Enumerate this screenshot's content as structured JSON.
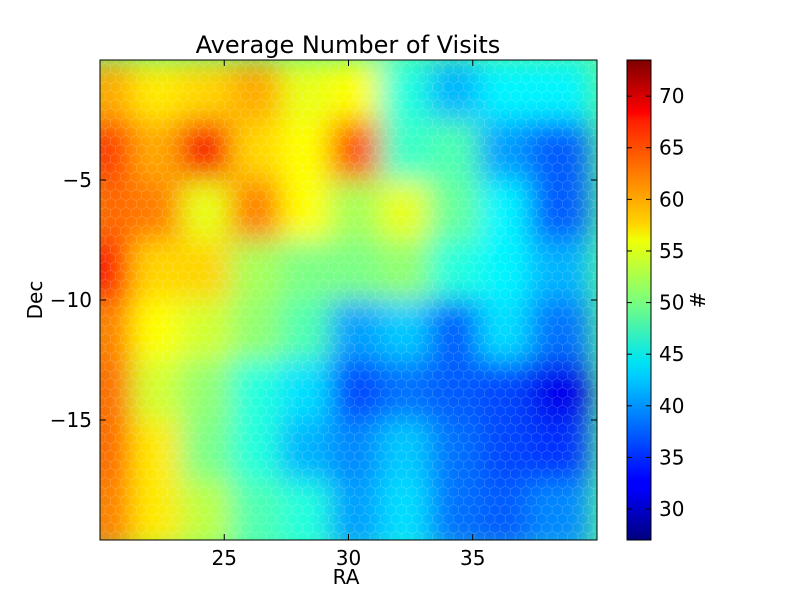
{
  "chart_data": {
    "type": "heatmap",
    "title": "Average Number of Visits",
    "xlabel": "RA",
    "ylabel": "Dec",
    "colorbar_label": "#",
    "xlim": [
      20,
      40
    ],
    "ylim": [
      -20,
      0
    ],
    "xticks": [
      25,
      30,
      35
    ],
    "xtick_labels": [
      "25",
      "30",
      "35"
    ],
    "yticks": [
      -5,
      -10,
      -15
    ],
    "ytick_labels": [
      "−5",
      "−10",
      "−15"
    ],
    "colorbar_range": [
      27,
      73.5
    ],
    "colorbar_ticks": [
      30,
      35,
      40,
      45,
      50,
      55,
      60,
      65,
      70
    ],
    "colorbar_tick_labels": [
      "30",
      "35",
      "40",
      "45",
      "50",
      "55",
      "60",
      "65",
      "70"
    ],
    "colormap": "jet",
    "grid": false,
    "grid_ra": [
      20.5,
      22.5,
      24.5,
      26.5,
      28.5,
      30.5,
      32.5,
      34.5,
      36.5,
      38.5
    ],
    "grid_dec": [
      -1.5,
      -4,
      -6.5,
      -9,
      -11.5,
      -14,
      -16.5,
      -19
    ],
    "values": [
      [
        60,
        57,
        58,
        60,
        55,
        56,
        46,
        41,
        44,
        44
      ],
      [
        65,
        60,
        68,
        58,
        56,
        64,
        47,
        48,
        40,
        37
      ],
      [
        63,
        62,
        55,
        62,
        56,
        52,
        55,
        49,
        44,
        37
      ],
      [
        67,
        58,
        58,
        52,
        50,
        50,
        51,
        46,
        44,
        41
      ],
      [
        62,
        56,
        54,
        51,
        48,
        40,
        42,
        37,
        43,
        38
      ],
      [
        63,
        54,
        51,
        46,
        43,
        36,
        38,
        37,
        36,
        32
      ],
      [
        63,
        57,
        50,
        46,
        41,
        39,
        42,
        38,
        36,
        35
      ],
      [
        62,
        57,
        53,
        48,
        46,
        40,
        43,
        38,
        37,
        39
      ]
    ]
  }
}
